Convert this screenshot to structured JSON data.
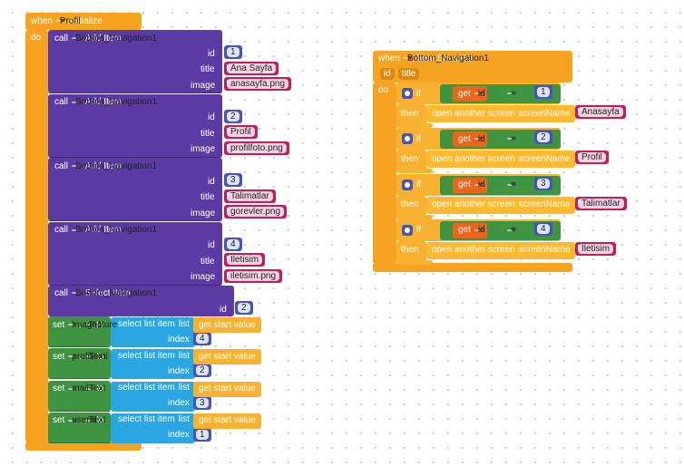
{
  "initialize": {
    "when": "when",
    "component": "Profil",
    "event": ".Initialize",
    "do": "do",
    "add_items": [
      {
        "call": "call",
        "component": "Bottom_Navigation1",
        "method": ".Add Item",
        "args": [
          {
            "name": "id",
            "value": 1
          },
          {
            "name": "title",
            "value": "Ana Sayfa"
          },
          {
            "name": "image",
            "value": "anasayfa.png"
          }
        ]
      },
      {
        "call": "call",
        "component": "Bottom_Navigation1",
        "method": ".Add Item",
        "args": [
          {
            "name": "id",
            "value": 2
          },
          {
            "name": "title",
            "value": "Profil"
          },
          {
            "name": "image",
            "value": "profilfoto.png"
          }
        ]
      },
      {
        "call": "call",
        "component": "Bottom_Navigation1",
        "method": ".Add Item",
        "args": [
          {
            "name": "id",
            "value": 3
          },
          {
            "name": "title",
            "value": "Talimatlar"
          },
          {
            "name": "image",
            "value": "gorevler.png"
          }
        ]
      },
      {
        "call": "call",
        "component": "Bottom_Navigation1",
        "method": ".Add Item",
        "args": [
          {
            "name": "id",
            "value": 4
          },
          {
            "name": "title",
            "value": "İletisim"
          },
          {
            "name": "image",
            "value": "iletisim.png"
          }
        ]
      }
    ],
    "select_item": {
      "call": "call",
      "component": "Bottom_Navigation1",
      "method": ".Select Item",
      "args": [
        {
          "name": "id",
          "value": 2
        }
      ]
    },
    "sets": [
      {
        "set": "set",
        "component": "Image1",
        "dot": ".",
        "property": "Picture",
        "to": "to",
        "select": "select list item",
        "list": "list",
        "get": "get start value",
        "index": "index",
        "index_value": 4
      },
      {
        "set": "set",
        "component": "profilismi",
        "dot": ".",
        "property": "Text",
        "to": "to",
        "select": "select list item",
        "list": "list",
        "get": "get start value",
        "index": "index",
        "index_value": 2
      },
      {
        "set": "set",
        "component": "mail",
        "dot": ".",
        "property": "Text",
        "to": "to",
        "select": "select list item",
        "list": "list",
        "get": "get start value",
        "index": "index",
        "index_value": 3
      },
      {
        "set": "set",
        "component": "userid",
        "dot": ".",
        "property": "Text",
        "to": "to",
        "select": "select list item",
        "list": "list",
        "get": "get start value",
        "index": "index",
        "index_value": 1
      }
    ]
  },
  "item_selected": {
    "when": "when",
    "component": "Bottom_Navigation1",
    "event": ".Item Selected",
    "params": [
      "id",
      "title"
    ],
    "do": "do",
    "branches": [
      {
        "if": "if",
        "get": "get",
        "var": "id",
        "op": "=",
        "value": 1,
        "then": "then",
        "action": "open another screen",
        "arg": "screenName",
        "screen": "Anasayfa"
      },
      {
        "if": "if",
        "get": "get",
        "var": "id",
        "op": "=",
        "value": 2,
        "then": "then",
        "action": "open another screen",
        "arg": "screenName",
        "screen": "Profil"
      },
      {
        "if": "if",
        "get": "get",
        "var": "id",
        "op": "=",
        "value": 3,
        "then": "then",
        "action": "open another screen",
        "arg": "screenName",
        "screen": "Talimatlar"
      },
      {
        "if": "if",
        "get": "get",
        "var": "id",
        "op": "=",
        "value": 4,
        "then": "then",
        "action": "open another screen",
        "arg": "screenName",
        "screen": "İletisim"
      }
    ]
  }
}
